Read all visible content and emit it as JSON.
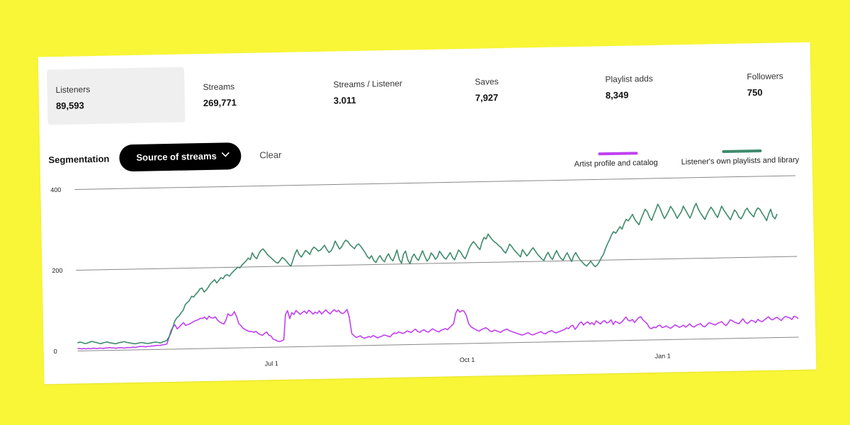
{
  "stats": [
    {
      "label": "Listeners",
      "value": "89,593",
      "active": true
    },
    {
      "label": "Streams",
      "value": "269,771",
      "active": false
    },
    {
      "label": "Streams / Listener",
      "value": "3.011",
      "active": false
    },
    {
      "label": "Saves",
      "value": "7,927",
      "active": false
    },
    {
      "label": "Playlist adds",
      "value": "8,349",
      "active": false
    },
    {
      "label": "Followers",
      "value": "750",
      "active": false
    }
  ],
  "segmentation": {
    "label": "Segmentation",
    "dropdown_label": "Source of streams",
    "clear_label": "Clear"
  },
  "colors": {
    "artist": "#c040f0",
    "playlists": "#3e8a6c",
    "dropdown_bg": "#000000"
  },
  "chart_data": {
    "type": "line",
    "title": "",
    "xlabel": "",
    "ylabel": "",
    "x_range": [
      "Apr 1",
      "Mar 31"
    ],
    "x_ticks": [
      {
        "label": "Jul 1",
        "day": 91
      },
      {
        "label": "Oct 1",
        "day": 183
      },
      {
        "label": "Jan 1",
        "day": 275
      }
    ],
    "y_ticks": [
      0,
      200,
      400
    ],
    "ylim": [
      0,
      400
    ],
    "grid": true,
    "legend_position": "top-right",
    "series": [
      {
        "name": "Artist profile and catalog",
        "color": "#c040f0",
        "values": [
          6,
          6,
          5,
          6,
          5,
          6,
          5,
          6,
          6,
          5,
          6,
          6,
          5,
          6,
          6,
          7,
          6,
          6,
          5,
          6,
          6,
          6,
          5,
          6,
          6,
          6,
          7,
          6,
          7,
          8,
          8,
          8,
          7,
          8,
          8,
          9,
          9,
          10,
          10,
          10,
          11,
          12,
          13,
          28,
          45,
          55,
          60,
          50,
          55,
          60,
          65,
          58,
          60,
          62,
          65,
          68,
          70,
          72,
          75,
          75,
          78,
          72,
          80,
          76,
          75,
          78,
          70,
          65,
          62,
          60,
          70,
          85,
          80,
          82,
          90,
          78,
          60,
          55,
          48,
          45,
          42,
          40,
          40,
          38,
          40,
          35,
          32,
          30,
          35,
          38,
          30,
          28,
          20,
          18,
          15,
          14,
          15,
          18,
          80,
          90,
          70,
          85,
          80,
          90,
          85,
          80,
          85,
          88,
          82,
          90,
          86,
          80,
          85,
          82,
          88,
          80,
          85,
          90,
          84,
          80,
          86,
          90,
          85,
          88,
          82,
          80,
          84,
          90,
          70,
          30,
          25,
          20,
          22,
          24,
          20,
          18,
          20,
          22,
          20,
          24,
          22,
          18,
          20,
          22,
          25,
          24,
          22,
          20,
          26,
          30,
          28,
          32,
          30,
          28,
          30,
          34,
          32,
          30,
          35,
          38,
          32,
          30,
          34,
          36,
          32,
          30,
          34,
          38,
          35,
          32,
          30,
          34,
          36,
          38,
          35,
          40,
          45,
          50,
          75,
          85,
          78,
          82,
          80,
          70,
          50,
          42,
          38,
          35,
          32,
          30,
          34,
          36,
          38,
          35,
          30,
          28,
          32,
          30,
          28,
          26,
          30,
          32,
          34,
          30,
          28,
          26,
          24,
          22,
          20,
          18,
          20,
          22,
          24,
          20,
          18,
          20,
          22,
          24,
          26,
          22,
          20,
          24,
          26,
          28,
          24,
          22,
          24,
          26,
          28,
          30,
          34,
          32,
          38,
          40,
          30,
          36,
          44,
          48,
          40,
          45,
          48,
          42,
          46,
          40,
          50,
          46,
          42,
          48,
          50,
          44,
          46,
          52,
          40,
          48,
          45,
          42,
          46,
          52,
          58,
          50,
          48,
          52,
          44,
          50,
          56,
          58,
          50,
          45,
          40,
          30,
          28,
          32,
          30,
          35,
          36,
          30,
          32,
          34,
          30,
          28,
          32,
          36,
          34,
          30,
          32,
          35,
          30,
          34,
          38,
          32,
          30,
          34,
          36,
          38,
          32,
          30,
          35,
          40,
          38,
          36,
          34,
          38,
          40,
          42,
          36,
          32,
          38,
          46,
          44,
          40,
          38,
          36,
          42,
          48,
          40,
          36,
          40,
          44,
          42,
          38,
          46,
          42,
          40,
          44,
          48,
          52,
          46,
          44,
          48,
          50,
          46,
          42,
          48,
          52,
          50,
          48,
          44,
          52,
          50,
          46
        ]
      },
      {
        "name": "Listener's own playlists and library",
        "color": "#3e8a6c",
        "values": [
          20,
          22,
          21,
          19,
          18,
          20,
          22,
          23,
          21,
          20,
          18,
          17,
          19,
          20,
          21,
          19,
          18,
          17,
          16,
          18,
          19,
          20,
          21,
          19,
          18,
          17,
          16,
          15,
          16,
          17,
          18,
          17,
          16,
          15,
          16,
          17,
          18,
          18,
          17,
          16,
          18,
          20,
          22,
          30,
          40,
          55,
          70,
          78,
          82,
          90,
          96,
          110,
          115,
          120,
          130,
          128,
          135,
          140,
          148,
          150,
          140,
          145,
          152,
          160,
          165,
          170,
          162,
          168,
          175,
          172,
          180,
          182,
          178,
          185,
          190,
          195,
          200,
          198,
          205,
          210,
          215,
          222,
          218,
          235,
          225,
          220,
          232,
          240,
          244,
          238,
          230,
          225,
          220,
          215,
          210,
          208,
          215,
          222,
          218,
          212,
          205,
          200,
          215,
          230,
          240,
          228,
          222,
          230,
          238,
          234,
          228,
          240,
          246,
          242,
          236,
          238,
          244,
          250,
          240,
          232,
          236,
          245,
          260,
          250,
          240,
          245,
          255,
          262,
          258,
          250,
          245,
          240,
          248,
          252,
          246,
          238,
          230,
          220,
          215,
          222,
          210,
          205,
          215,
          222,
          212,
          206,
          218,
          226,
          214,
          208,
          220,
          235,
          212,
          202,
          224,
          232,
          210,
          200,
          216,
          224,
          214,
          208,
          220,
          232,
          218,
          206,
          212,
          226,
          220,
          210,
          216,
          230,
          222,
          214,
          210,
          218,
          226,
          214,
          208,
          220,
          232,
          226,
          216,
          210,
          222,
          236,
          245,
          252,
          246,
          238,
          232,
          250,
          262,
          258,
          270,
          262,
          255,
          250,
          246,
          240,
          236,
          228,
          222,
          232,
          244,
          238,
          230,
          224,
          218,
          212,
          230,
          222,
          214,
          220,
          228,
          234,
          226,
          218,
          212,
          206,
          202,
          214,
          222,
          210,
          204,
          216,
          226,
          214,
          206,
          202,
          212,
          220,
          208,
          198,
          212,
          220,
          210,
          202,
          196,
          190,
          186,
          192,
          198,
          190,
          184,
          188,
          196,
          206,
          214,
          228,
          240,
          250,
          262,
          270,
          266,
          274,
          282,
          276,
          290,
          300,
          296,
          304,
          312,
          300,
          292,
          286,
          300,
          312,
          324,
          318,
          304,
          296,
          310,
          322,
          336,
          326,
          312,
          300,
          308,
          318,
          330,
          322,
          312,
          300,
          308,
          316,
          330,
          320,
          310,
          300,
          312,
          326,
          336,
          322,
          312,
          304,
          296,
          308,
          318,
          326,
          318,
          308,
          300,
          314,
          328,
          318,
          310,
          302,
          294,
          306,
          318,
          312,
          300,
          296,
          304,
          316,
          322,
          312,
          306,
          300,
          314,
          322,
          318,
          308,
          300,
          290,
          306,
          318,
          300,
          294,
          306
        ]
      }
    ]
  }
}
